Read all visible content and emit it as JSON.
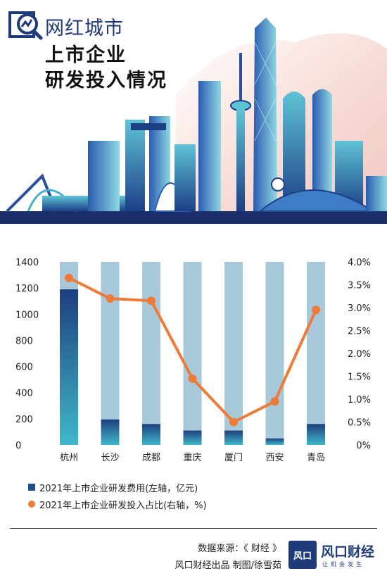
{
  "header": {
    "line1": "网红城市",
    "line2": "上市企业",
    "line3": "研发投入情况"
  },
  "colors": {
    "bar_total": "#a7c9d9",
    "bar_value_top": "#1e3f7e",
    "bar_value_bottom": "#3fb8c9",
    "line": "#ef7b3a",
    "brand": "#1f3a78"
  },
  "chart_data": {
    "type": "bar",
    "categories": [
      "杭州",
      "长沙",
      "成都",
      "重庆",
      "厦门",
      "西安",
      "青岛"
    ],
    "series": [
      {
        "name": "2021年上市企业研发费用(左轴，亿元)",
        "type": "bar",
        "axis": "left",
        "values": [
          1190,
          195,
          160,
          110,
          110,
          50,
          160
        ]
      },
      {
        "name": "2021年上市企业研发投入占比(右轴，%)",
        "type": "line",
        "axis": "right",
        "values": [
          3.65,
          3.2,
          3.15,
          1.45,
          0.5,
          0.95,
          2.95
        ]
      }
    ],
    "y_left": {
      "min": 0,
      "max": 1400,
      "ticks": [
        "0",
        "200",
        "400",
        "600",
        "800",
        "1000",
        "1200",
        "1400"
      ]
    },
    "y_right": {
      "min": 0,
      "max": 4.0,
      "ticks": [
        "0%",
        "0.5%",
        "1.0%",
        "1.5%",
        "2.0%",
        "2.5%",
        "3.0%",
        "3.5%",
        "4.0%"
      ]
    },
    "background_bar_value": 1400,
    "grid": false,
    "legend_position": "bottom-left"
  },
  "legend": {
    "bar_label": "2021年上市企业研发费用(左轴，亿元)",
    "line_label": "2021年上市企业研发投入占比(右轴，%)"
  },
  "footer": {
    "source": "数据来源：《 财经 》",
    "credit": "风口财经出品  制图/徐雪茹",
    "brand_name": "风口财经",
    "brand_badge": "风口",
    "brand_slogan": "让机会发生"
  },
  "icons": {
    "logo": "magnifier-chart-icon"
  }
}
